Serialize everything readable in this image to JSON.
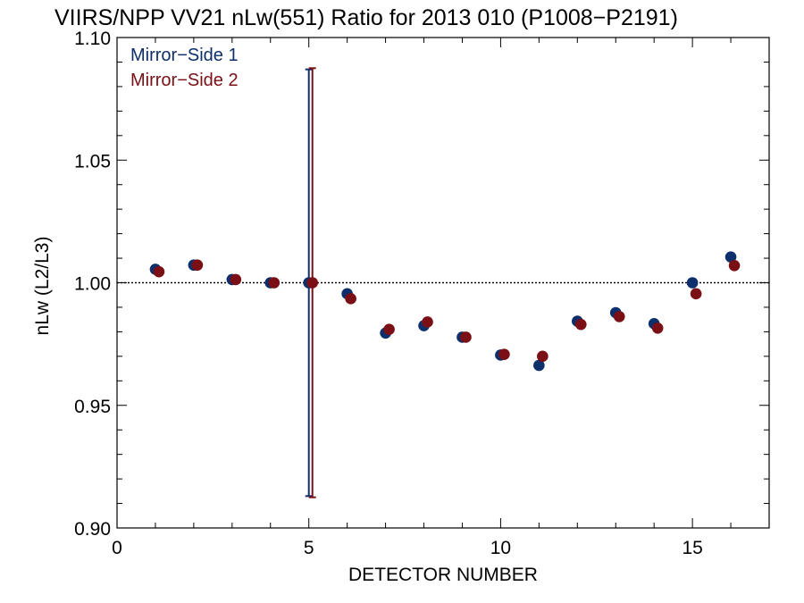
{
  "chart_data": {
    "type": "scatter",
    "title": "VIIRS/NPP VV21 nLw(551) Ratio for 2013 010 (P1008−P2191)",
    "xlabel": "DETECTOR NUMBER",
    "ylabel": "nLw (L2/L3)",
    "xlim": [
      0,
      17
    ],
    "ylim": [
      0.9,
      1.1
    ],
    "x_ticks": [
      0,
      5,
      10,
      15
    ],
    "x_tick_labels": [
      "0",
      "5",
      "10",
      "15"
    ],
    "y_ticks": [
      0.9,
      0.95,
      1.0,
      1.05,
      1.1
    ],
    "y_tick_labels": [
      "0.90",
      "0.95",
      "1.00",
      "1.05",
      "1.10"
    ],
    "reference_line": 1.0,
    "legend_position": "top-left",
    "series": [
      {
        "name": "Mirror−Side 1",
        "color": "#0d2f6b",
        "x": [
          1,
          2,
          3,
          4,
          5,
          6,
          7,
          8,
          9,
          10,
          11,
          12,
          13,
          14,
          15,
          16
        ],
        "values": [
          1.0055,
          1.0072,
          1.0013,
          1.0,
          1.0,
          0.9955,
          0.9795,
          0.9825,
          0.9778,
          0.9705,
          0.9663,
          0.9843,
          0.9878,
          0.9833,
          1.0,
          1.0105
        ],
        "error_bar": {
          "x": 5,
          "low": 0.913,
          "high": 1.087
        }
      },
      {
        "name": "Mirror−Side 2",
        "color": "#7a0f16",
        "x": [
          1,
          2,
          3,
          4,
          5,
          6,
          7,
          8,
          9,
          10,
          11,
          12,
          13,
          14,
          15,
          16
        ],
        "values": [
          1.0045,
          1.0072,
          1.0013,
          1.0,
          1.0,
          0.9935,
          0.981,
          0.984,
          0.9778,
          0.9708,
          0.97,
          0.983,
          0.9862,
          0.9815,
          0.9955,
          1.007
        ],
        "error_bar": {
          "x": 5,
          "low": 0.9125,
          "high": 1.0875
        }
      }
    ]
  }
}
